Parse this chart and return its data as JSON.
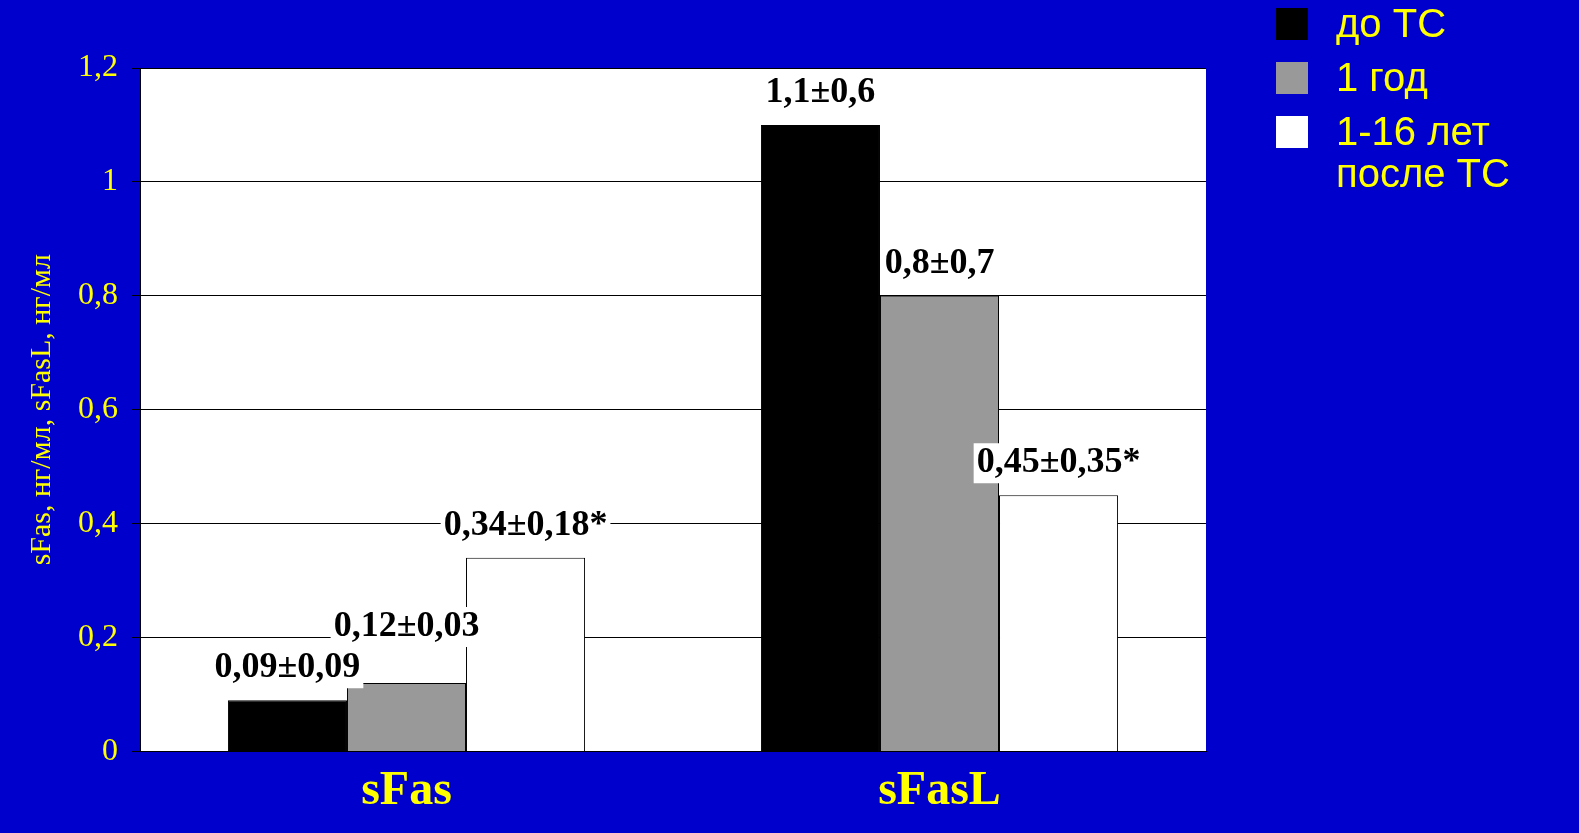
{
  "chart_data": {
    "type": "bar",
    "ylabel": "sFas, нг/мл, sFasL, нг/мл",
    "categories": [
      "sFas",
      "sFasL"
    ],
    "series": [
      {
        "name": "до ТС",
        "color": "#000000",
        "values": [
          0.09,
          1.1
        ],
        "value_labels": [
          "0,09±0,09",
          "1,1±0,6"
        ]
      },
      {
        "name": "1 год",
        "color": "#999999",
        "values": [
          0.12,
          0.8
        ],
        "value_labels": [
          "0,12±0,03",
          "0,8±0,7"
        ]
      },
      {
        "name": "1-16 лет после ТС",
        "color": "#ffffff",
        "values": [
          0.34,
          0.45
        ],
        "value_labels": [
          "0,34±0,18*",
          "0,45±0,35*"
        ]
      }
    ],
    "ylim": [
      0,
      1.2
    ],
    "yticks": [
      0,
      {
        "value": 0.2,
        "label": "0,2"
      },
      {
        "value": 0.4,
        "label": "0,4"
      },
      {
        "value": 0.6,
        "label": "0,6"
      },
      {
        "value": 0.8,
        "label": "0,8"
      },
      1,
      {
        "value": 1.2,
        "label": "1,2"
      }
    ],
    "grid": "y",
    "legend": "top right"
  }
}
